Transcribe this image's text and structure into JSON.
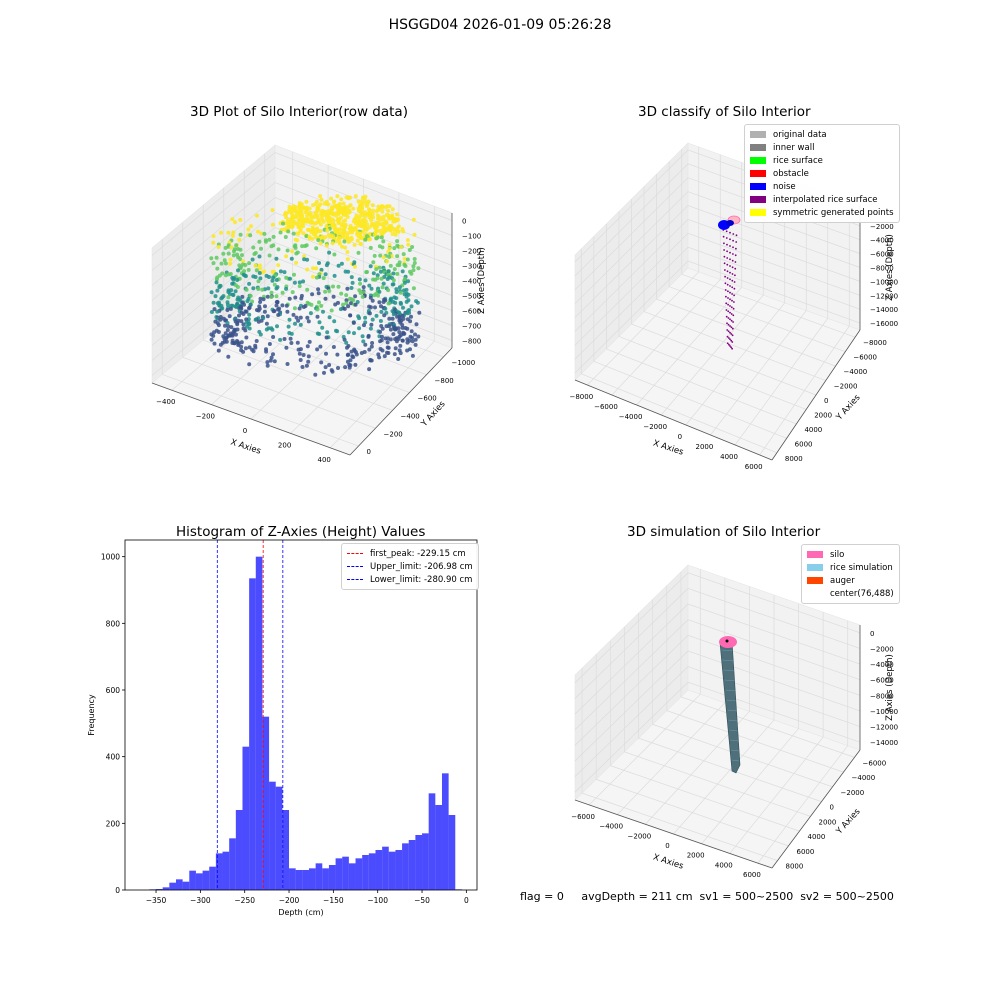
{
  "figure_title": "HSGGD04 2026-01-09 05:26:28",
  "footer_text": "flag = 0     avgDepth = 211 cm  sv1 = 500~2500  sv2 = 500~2500",
  "chart_data": [
    {
      "type": "scatter",
      "title": "3D Plot of Silo Interior(row data)",
      "xlabel": "X Axies",
      "ylabel": "Y Axies",
      "zlabel": "Z Axies (Depth)",
      "xticks": [
        "−400",
        "−200",
        "0",
        "200",
        "400"
      ],
      "yticks": [
        "0",
        "−200",
        "−400",
        "−600",
        "−800",
        "−1000"
      ],
      "zticks": [
        "0",
        "−100",
        "−200",
        "−300",
        "−400",
        "−500",
        "−600",
        "−700",
        "−800"
      ],
      "colormap": [
        "#3b528b",
        "#21918c",
        "#5ec962",
        "#fde725"
      ]
    },
    {
      "type": "scatter",
      "title": "3D classify of Silo Interior",
      "xlabel": "X Axies",
      "ylabel": "Y Axies",
      "zlabel": "Z Axies (Depth)",
      "xticks": [
        "−8000",
        "−6000",
        "−4000",
        "−2000",
        "0",
        "2000",
        "4000",
        "6000"
      ],
      "yticks": [
        "8000",
        "6000",
        "4000",
        "2000",
        "0",
        "−2000",
        "−4000",
        "−6000",
        "−8000"
      ],
      "zticks": [
        "0",
        "−2000",
        "−4000",
        "−6000",
        "−8000",
        "−10000",
        "−12000",
        "−14000",
        "−16000"
      ],
      "legend": [
        {
          "label": "original data",
          "color": "#b0b0b0"
        },
        {
          "label": "inner wall",
          "color": "#808080"
        },
        {
          "label": "rice surface",
          "color": "#00ff00"
        },
        {
          "label": "obstacle",
          "color": "#ff0000"
        },
        {
          "label": "noise",
          "color": "#0000ff"
        },
        {
          "label": "interpolated rice surface",
          "color": "#800080"
        },
        {
          "label": "symmetric generated points",
          "color": "#ffff00"
        }
      ]
    },
    {
      "type": "bar",
      "title": "Histogram of Z-Axies (Height) Values",
      "xlabel": "Depth (cm)",
      "ylabel": "Frequency",
      "xlim": [
        -385,
        12
      ],
      "ylim": [
        0,
        1050
      ],
      "xticks": [
        -350,
        -300,
        -250,
        -200,
        -150,
        -100,
        -50,
        0
      ],
      "yticks": [
        0,
        200,
        400,
        600,
        800,
        1000
      ],
      "bin_width": 7.5,
      "bin_start": -357.5,
      "color": "#0000ff",
      "values": [
        2,
        3,
        8,
        22,
        32,
        25,
        58,
        50,
        58,
        70,
        110,
        115,
        155,
        240,
        430,
        935,
        1000,
        520,
        325,
        310,
        240,
        65,
        60,
        60,
        65,
        80,
        65,
        75,
        95,
        100,
        80,
        95,
        105,
        110,
        120,
        130,
        115,
        120,
        140,
        150,
        165,
        170,
        290,
        255,
        350,
        225,
        2
      ],
      "lines": [
        {
          "label": "first_peak: -229.15 cm",
          "x": -229.15,
          "color": "#ff0000"
        },
        {
          "label": "Upper_limit: -206.98 cm",
          "x": -206.98,
          "color": "#0000ff"
        },
        {
          "label": "Lower_limit: -280.90 cm",
          "x": -280.9,
          "color": "#0000ff"
        }
      ]
    },
    {
      "type": "scatter",
      "title": "3D simulation of Silo Interior",
      "xlabel": "X Axies",
      "ylabel": "Y Axies",
      "zlabel": "Z Axies (Depth)",
      "xticks": [
        "−6000",
        "−4000",
        "−2000",
        "0",
        "2000",
        "4000",
        "6000"
      ],
      "yticks": [
        "8000",
        "6000",
        "4000",
        "2000",
        "0",
        "−2000",
        "−4000",
        "−6000"
      ],
      "zticks": [
        "0",
        "−2000",
        "−4000",
        "−6000",
        "−8000",
        "−10000",
        "−12000",
        "−14000"
      ],
      "legend": [
        {
          "label": "silo",
          "color": "#ff69b4"
        },
        {
          "label": "rice simulation",
          "color": "#87ceeb"
        },
        {
          "label": "auger",
          "color": "#ff4500"
        },
        {
          "label": "center(76,488)",
          "color": ""
        }
      ]
    }
  ]
}
